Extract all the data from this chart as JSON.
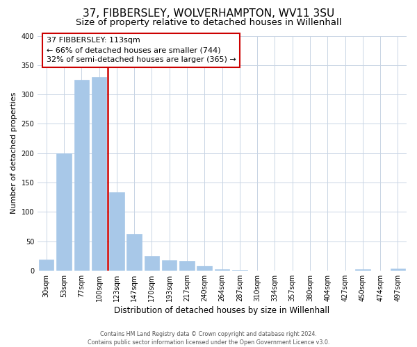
{
  "title": "37, FIBBERSLEY, WOLVERHAMPTON, WV11 3SU",
  "subtitle": "Size of property relative to detached houses in Willenhall",
  "xlabel": "Distribution of detached houses by size in Willenhall",
  "ylabel": "Number of detached properties",
  "categories": [
    "30sqm",
    "53sqm",
    "77sqm",
    "100sqm",
    "123sqm",
    "147sqm",
    "170sqm",
    "193sqm",
    "217sqm",
    "240sqm",
    "264sqm",
    "287sqm",
    "310sqm",
    "334sqm",
    "357sqm",
    "380sqm",
    "404sqm",
    "427sqm",
    "450sqm",
    "474sqm",
    "497sqm"
  ],
  "values": [
    19,
    200,
    325,
    330,
    133,
    62,
    25,
    17,
    16,
    8,
    2,
    1,
    0,
    0,
    0,
    0,
    0,
    0,
    2,
    0,
    3
  ],
  "bar_color": "#a8c8e8",
  "bar_edgecolor": "#a8c8e8",
  "vline_color": "#cc0000",
  "vline_x_index": 3.5,
  "annotation_title": "37 FIBBERSLEY: 113sqm",
  "annotation_line1": "← 66% of detached houses are smaller (744)",
  "annotation_line2": "32% of semi-detached houses are larger (365) →",
  "annotation_box_facecolor": "#ffffff",
  "annotation_box_edgecolor": "#cc0000",
  "ylim": [
    0,
    400
  ],
  "yticks": [
    0,
    50,
    100,
    150,
    200,
    250,
    300,
    350,
    400
  ],
  "footnote_line1": "Contains HM Land Registry data © Crown copyright and database right 2024.",
  "footnote_line2": "Contains public sector information licensed under the Open Government Licence v3.0.",
  "bg_color": "#ffffff",
  "grid_color": "#c8d4e4",
  "title_fontsize": 11,
  "subtitle_fontsize": 9.5,
  "ylabel_fontsize": 8,
  "xlabel_fontsize": 8.5,
  "tick_fontsize": 7,
  "annotation_fontsize": 8,
  "footnote_fontsize": 5.8
}
